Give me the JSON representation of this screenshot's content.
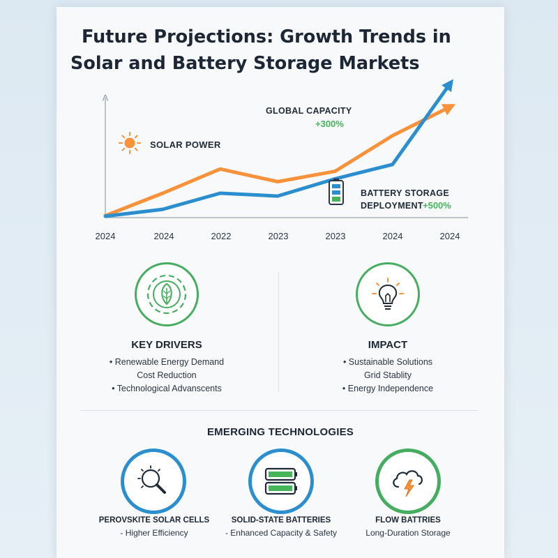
{
  "title_line1": "Future Projections: Growth Trends in",
  "title_line2": "Solar and Battery Storage Markets",
  "colors": {
    "solar": "#f7923a",
    "battery": "#2b8fcf",
    "green": "#45ad5f",
    "accent_green": "#46b45a"
  },
  "chart_data": {
    "type": "line",
    "x": [
      "2024",
      "2024",
      "2022",
      "2023",
      "2023",
      "2024",
      "2024"
    ],
    "series": [
      {
        "name": "SOLAR POWER",
        "color": "#f7923a",
        "values": [
          1,
          40,
          82,
          60,
          78,
          140,
          190
        ]
      },
      {
        "name": "BATTERY STORAGE DEPLOYMENT",
        "color": "#2b8fcf",
        "values": [
          0,
          12,
          40,
          35,
          65,
          90,
          230
        ]
      }
    ],
    "ylim": [
      0,
      240
    ],
    "annotations": [
      {
        "label": "GLOBAL CAPACITY",
        "value": "+300%",
        "icon": "sun-icon"
      },
      {
        "label": "SOLAR POWER",
        "icon": "sun-icon"
      },
      {
        "label_line1": "BATTERY STORAGE",
        "label_line2": "DEPLOYMENT",
        "value": "+500%",
        "icon": "battery-icon"
      }
    ],
    "grid": false,
    "arrowheads": true
  },
  "annot": {
    "global_capacity": "GLOBAL CAPACITY",
    "global_pct": "+300%",
    "solar_power": "SOLAR POWER",
    "battery_line1": "BATTERY STORAGE",
    "battery_line2": "DEPLOYMENT",
    "battery_pct": "+500%"
  },
  "drivers": {
    "heading": "KEY DRIVERS",
    "icon": "leaf-gear-icon",
    "items": [
      "• Renewable Energy Demand",
      "Cost Reduction",
      "• Technological Advanscents"
    ]
  },
  "impact": {
    "heading": "IMPACT",
    "icon": "lightbulb-icon",
    "items": [
      "• Sustainable Solutions",
      "Grid Stablity",
      "• Energy Independence"
    ]
  },
  "emerging": {
    "heading": "EMERGING TECHNOLOGIES",
    "techs": [
      {
        "name": "PEROVSKITE SOLAR CELLS",
        "sub": "- Higher Efficiency",
        "icon": "magnifier-sun-icon"
      },
      {
        "name": "SOLID-STATE BATTERIES",
        "sub": "- Enhanced Capacity & Safety",
        "icon": "batteries-icon"
      },
      {
        "name": "FLOW BATTRIES",
        "sub": "Long-Duration Storage",
        "icon": "cloud-bolt-icon"
      }
    ]
  }
}
